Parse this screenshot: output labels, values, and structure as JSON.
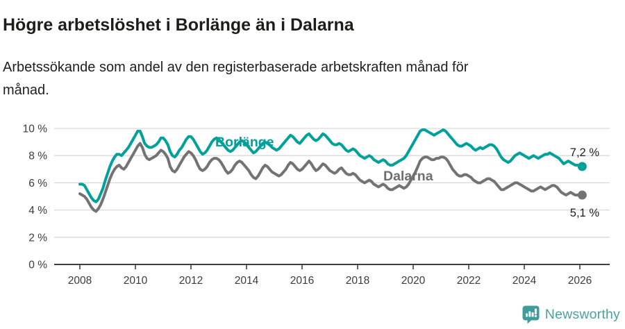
{
  "header": {
    "title": "Högre arbetslöshet i Borlänge än i Dalarna",
    "subtitle": "Arbetssökande som andel av den registerbaserade arbetskraften månad för månad."
  },
  "colors": {
    "borlange": "#00a19a",
    "dalarna": "#737373",
    "grid": "#d9d9d9",
    "axis": "#3f3f3f",
    "tick_text": "#3b3b3b",
    "title_text": "#1d1d1b",
    "logo": "#4ba1a1"
  },
  "chart_data": {
    "type": "line",
    "x_start_year": 2008,
    "x_step_months": 1,
    "x_ticks": [
      {
        "year": 2008,
        "label": "2008"
      },
      {
        "year": 2010,
        "label": "2010"
      },
      {
        "year": 2012,
        "label": "2012"
      },
      {
        "year": 2014,
        "label": "2014"
      },
      {
        "year": 2016,
        "label": "2016"
      },
      {
        "year": 2018,
        "label": "2018"
      },
      {
        "year": 2020,
        "label": "2020"
      },
      {
        "year": 2022,
        "label": "2022"
      },
      {
        "year": 2024,
        "label": "2024"
      },
      {
        "year": 2026,
        "label": "2026"
      }
    ],
    "y_ticks": [
      {
        "value": 10,
        "label": "10 %"
      },
      {
        "value": 8,
        "label": "8 %"
      },
      {
        "value": 6,
        "label": "6 %"
      },
      {
        "value": 4,
        "label": "4 %"
      },
      {
        "value": 2,
        "label": "2 %"
      },
      {
        "value": 0,
        "label": "0 %"
      }
    ],
    "ylim": [
      0,
      10
    ],
    "grid": true,
    "series": [
      {
        "name": "Borlänge",
        "color": "#00a19a",
        "end_label": "7,2 %",
        "end_value": 7.2,
        "values": [
          5.9,
          5.9,
          5.8,
          5.5,
          5.2,
          4.9,
          4.7,
          4.6,
          4.8,
          5.2,
          5.6,
          6.2,
          6.7,
          7.2,
          7.6,
          7.9,
          8.1,
          8.1,
          8.0,
          8.2,
          8.4,
          8.6,
          8.9,
          9.2,
          9.5,
          9.8,
          9.8,
          9.4,
          8.9,
          8.7,
          8.6,
          8.6,
          8.7,
          8.8,
          9.0,
          9.3,
          9.3,
          9.1,
          8.8,
          8.3,
          8.0,
          7.9,
          8.1,
          8.4,
          8.6,
          8.9,
          9.2,
          9.4,
          9.4,
          9.2,
          8.9,
          8.6,
          8.3,
          8.1,
          8.2,
          8.4,
          8.7,
          9.0,
          9.2,
          9.3,
          9.2,
          9.0,
          8.8,
          8.6,
          8.4,
          8.3,
          8.4,
          8.6,
          8.8,
          9.0,
          9.1,
          9.0,
          8.8,
          8.6,
          8.4,
          8.2,
          8.3,
          8.5,
          8.7,
          8.9,
          9.0,
          8.9,
          8.8,
          8.6,
          8.5,
          8.4,
          8.5,
          8.7,
          8.9,
          9.1,
          9.3,
          9.5,
          9.4,
          9.2,
          9.0,
          8.9,
          9.1,
          9.3,
          9.5,
          9.6,
          9.4,
          9.2,
          9.1,
          9.2,
          9.4,
          9.6,
          9.5,
          9.3,
          9.1,
          8.9,
          8.8,
          8.8,
          8.9,
          8.8,
          8.6,
          8.4,
          8.3,
          8.4,
          8.5,
          8.4,
          8.2,
          8.0,
          7.9,
          7.8,
          7.9,
          8.0,
          7.9,
          7.7,
          7.6,
          7.5,
          7.6,
          7.7,
          7.6,
          7.4,
          7.3,
          7.3,
          7.4,
          7.5,
          7.6,
          7.7,
          7.8,
          8.0,
          8.3,
          8.6,
          8.9,
          9.2,
          9.5,
          9.8,
          9.9,
          9.9,
          9.8,
          9.7,
          9.6,
          9.5,
          9.6,
          9.7,
          9.8,
          9.9,
          9.8,
          9.6,
          9.4,
          9.2,
          9.0,
          8.8,
          8.7,
          8.7,
          8.8,
          8.9,
          8.8,
          8.7,
          8.5,
          8.4,
          8.5,
          8.6,
          8.5,
          8.6,
          8.7,
          8.8,
          8.8,
          8.7,
          8.5,
          8.2,
          7.9,
          7.7,
          7.6,
          7.5,
          7.6,
          7.8,
          8.0,
          8.1,
          8.2,
          8.1,
          8.0,
          7.9,
          7.8,
          7.9,
          8.0,
          7.9,
          7.8,
          7.9,
          8.0,
          8.1,
          8.1,
          8.2,
          8.1,
          8.0,
          7.9,
          7.8,
          7.6,
          7.4,
          7.5,
          7.6,
          7.5,
          7.4,
          7.3,
          7.3,
          7.2,
          7.2
        ]
      },
      {
        "name": "Dalarna",
        "color": "#737373",
        "end_label": "5,1 %",
        "end_value": 5.1,
        "values": [
          5.2,
          5.1,
          5.0,
          4.8,
          4.5,
          4.2,
          4.0,
          3.9,
          4.1,
          4.4,
          4.8,
          5.3,
          5.8,
          6.3,
          6.7,
          7.0,
          7.2,
          7.3,
          7.1,
          7.0,
          7.2,
          7.5,
          7.8,
          8.1,
          8.4,
          8.7,
          8.9,
          8.6,
          8.1,
          7.8,
          7.7,
          7.8,
          7.9,
          8.0,
          8.2,
          8.4,
          8.3,
          8.1,
          7.8,
          7.2,
          6.9,
          6.8,
          7.0,
          7.3,
          7.6,
          7.9,
          8.1,
          8.3,
          8.2,
          8.0,
          7.7,
          7.3,
          7.0,
          6.9,
          7.0,
          7.2,
          7.5,
          7.7,
          7.8,
          7.8,
          7.7,
          7.5,
          7.2,
          6.9,
          6.7,
          6.8,
          7.0,
          7.3,
          7.5,
          7.6,
          7.5,
          7.3,
          7.1,
          6.9,
          6.6,
          6.4,
          6.3,
          6.5,
          6.8,
          7.1,
          7.3,
          7.2,
          7.0,
          6.8,
          6.7,
          6.6,
          6.5,
          6.6,
          6.8,
          7.0,
          7.3,
          7.5,
          7.4,
          7.2,
          7.0,
          6.9,
          7.0,
          7.2,
          7.4,
          7.6,
          7.4,
          7.1,
          6.9,
          7.0,
          7.2,
          7.4,
          7.3,
          7.1,
          6.9,
          6.8,
          6.7,
          6.8,
          7.0,
          7.1,
          6.9,
          6.7,
          6.6,
          6.6,
          6.7,
          6.6,
          6.4,
          6.2,
          6.1,
          6.0,
          6.1,
          6.2,
          6.1,
          5.9,
          5.8,
          5.7,
          5.8,
          5.9,
          5.8,
          5.6,
          5.5,
          5.5,
          5.6,
          5.7,
          5.8,
          5.7,
          5.6,
          5.7,
          5.9,
          6.2,
          6.5,
          6.8,
          7.2,
          7.6,
          7.8,
          7.9,
          7.9,
          7.8,
          7.7,
          7.7,
          7.8,
          7.8,
          7.9,
          7.9,
          7.8,
          7.6,
          7.3,
          7.0,
          6.8,
          6.6,
          6.5,
          6.5,
          6.6,
          6.6,
          6.5,
          6.4,
          6.2,
          6.1,
          6.0,
          6.0,
          6.1,
          6.2,
          6.3,
          6.3,
          6.2,
          6.1,
          5.9,
          5.7,
          5.5,
          5.5,
          5.6,
          5.7,
          5.8,
          5.9,
          6.0,
          6.0,
          5.9,
          5.8,
          5.7,
          5.6,
          5.5,
          5.4,
          5.4,
          5.5,
          5.6,
          5.7,
          5.6,
          5.5,
          5.6,
          5.7,
          5.8,
          5.8,
          5.7,
          5.5,
          5.3,
          5.2,
          5.1,
          5.2,
          5.3,
          5.2,
          5.1,
          5.1,
          5.1,
          5.1
        ]
      }
    ]
  },
  "logo": {
    "text": "Newsworthy"
  }
}
